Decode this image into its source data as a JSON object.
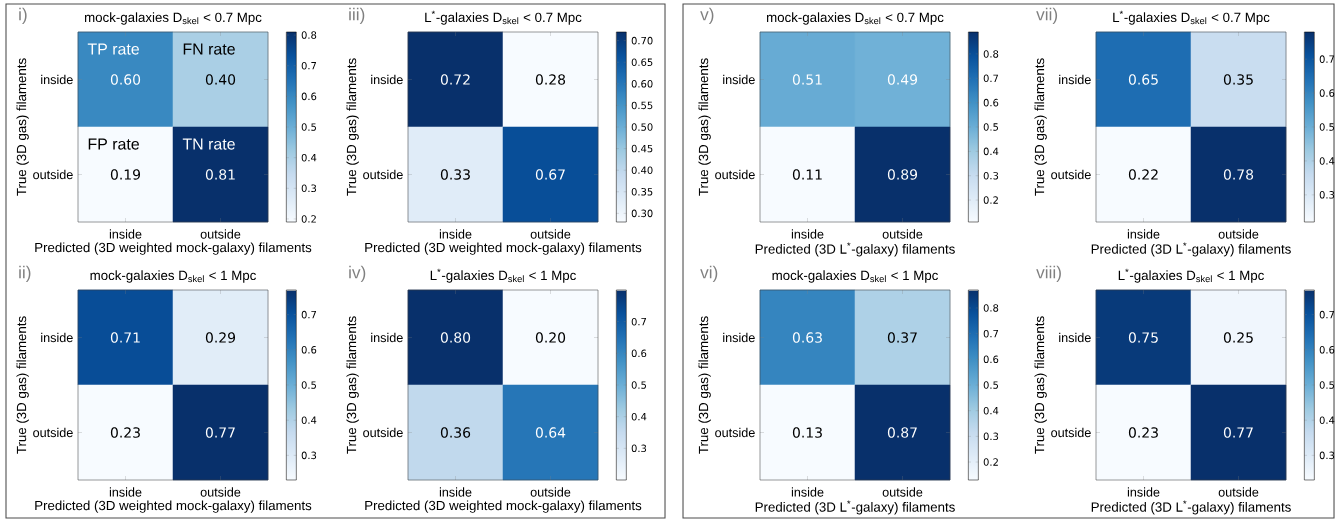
{
  "chart_data": [
    {
      "type": "heatmap",
      "title": "mock-galaxies D$_{skel}$ < 0.7 Mpc",
      "xlabel": "Predicted (3D weighted mock-galaxy) filaments",
      "ylabel": "True (3D gas) filaments",
      "categories": [
        "inside",
        "outside"
      ],
      "y_categories": [
        "inside",
        "outside"
      ],
      "cells": [
        [
          0.6,
          0.4
        ],
        [
          0.19,
          0.81
        ]
      ],
      "cell_labels": [
        [
          "0.60",
          "0.40"
        ],
        [
          "0.19",
          "0.81"
        ]
      ],
      "data_labels": true,
      "clim": [
        0.19,
        0.81
      ],
      "cticks": [
        0.2,
        0.3,
        0.4,
        0.5,
        0.6,
        0.7,
        0.8
      ],
      "annotations": [
        "i)",
        "TP rate",
        "FN rate",
        "FP rate",
        "TN rate"
      ]
    },
    {
      "type": "heatmap",
      "title": "L$^{*}$-galaxies D$_{skel}$ < 0.7 Mpc",
      "xlabel": "Predicted (3D weighted mock-galaxy) filaments",
      "ylabel": "True (3D gas) filaments",
      "categories": [
        "inside",
        "outside"
      ],
      "y_categories": [
        "inside",
        "outside"
      ],
      "cells": [
        [
          0.72,
          0.28
        ],
        [
          0.33,
          0.67
        ]
      ],
      "data_labels": true,
      "clim": [
        0.28,
        0.72
      ],
      "cticks": [
        {
          "value": 0.3,
          "label": "0.30"
        },
        0.35,
        {
          "value": 0.4,
          "label": "0.40"
        },
        0.45,
        {
          "value": 0.5,
          "label": "0.50"
        },
        0.55,
        {
          "value": 0.6,
          "label": "0.60"
        },
        0.65,
        {
          "value": 0.7,
          "label": "0.70"
        }
      ],
      "annotations": [
        "iii)"
      ]
    },
    {
      "type": "heatmap",
      "title": "mock-galaxies D$_{skel}$ < 0.7 Mpc",
      "xlabel": "Predicted (3D L$^{*}$-galaxy) filaments",
      "ylabel": "True (3D gas) filaments",
      "categories": [
        "inside",
        "outside"
      ],
      "y_categories": [
        "inside",
        "outside"
      ],
      "cells": [
        [
          0.51,
          0.49
        ],
        [
          0.11,
          0.89
        ]
      ],
      "data_labels": true,
      "clim": [
        0.11,
        0.89
      ],
      "cticks": [
        0.2,
        0.3,
        0.4,
        0.5,
        0.6,
        0.7,
        0.8
      ],
      "annotations": [
        "v)"
      ]
    },
    {
      "type": "heatmap",
      "title": "L$^{*}$-galaxies D$_{skel}$ < 0.7 Mpc",
      "xlabel": "Predicted (3D L$^{*}$-galaxy) filaments",
      "ylabel": "True (3D gas) filaments",
      "categories": [
        "inside",
        "outside"
      ],
      "y_categories": [
        "inside",
        "outside"
      ],
      "cells": [
        [
          0.65,
          0.35
        ],
        [
          0.22,
          0.78
        ]
      ],
      "data_labels": true,
      "clim": [
        0.22,
        0.78
      ],
      "cticks": [
        0.3,
        0.4,
        0.5,
        0.6,
        0.7
      ],
      "annotations": [
        "vii)"
      ]
    },
    {
      "type": "heatmap",
      "title": "mock-galaxies D$_{skel}$ < 1 Mpc",
      "xlabel": "Predicted (3D weighted mock-galaxy) filaments",
      "ylabel": "True (3D gas) filaments",
      "categories": [
        "inside",
        "outside"
      ],
      "y_categories": [
        "inside",
        "outside"
      ],
      "cells": [
        [
          0.71,
          0.29
        ],
        [
          0.23,
          0.77
        ]
      ],
      "data_labels": true,
      "clim": [
        0.23,
        0.77
      ],
      "cticks": [
        0.3,
        0.4,
        0.5,
        0.6,
        0.7
      ],
      "annotations": [
        "ii)"
      ]
    },
    {
      "type": "heatmap",
      "title": "L$^{*}$-galaxies D$_{skel}$ < 1 Mpc",
      "xlabel": "Predicted (3D weighted mock-galaxy) filaments",
      "ylabel": "True (3D gas) filaments",
      "categories": [
        "inside",
        "outside"
      ],
      "y_categories": [
        "inside",
        "outside"
      ],
      "cells": [
        [
          0.8,
          0.2
        ],
        [
          0.36,
          0.64
        ]
      ],
      "cell_labels": [
        [
          "0.80",
          "0.20"
        ],
        [
          "0.36",
          "0.64"
        ]
      ],
      "data_labels": true,
      "clim": [
        0.2,
        0.8
      ],
      "cticks": [
        0.3,
        0.4,
        0.5,
        0.6,
        0.7
      ],
      "annotations": [
        "iv)"
      ]
    },
    {
      "type": "heatmap",
      "title": "mock-galaxies D$_{skel}$ < 1 Mpc",
      "xlabel": "Predicted (3D L$^{*}$-galaxy) filaments",
      "ylabel": "True (3D gas) filaments",
      "categories": [
        "inside",
        "outside"
      ],
      "y_categories": [
        "inside",
        "outside"
      ],
      "cells": [
        [
          0.63,
          0.37
        ],
        [
          0.13,
          0.87
        ]
      ],
      "data_labels": true,
      "clim": [
        0.13,
        0.87
      ],
      "cticks": [
        0.2,
        0.3,
        0.4,
        0.5,
        0.6,
        0.7,
        0.8
      ],
      "annotations": [
        "vi)"
      ]
    },
    {
      "type": "heatmap",
      "title": "L$^{*}$-galaxies D$_{skel}$ < 1 Mpc",
      "xlabel": "Predicted (3D L$^{*}$-galaxy) filaments",
      "ylabel": "True (3D gas) filaments",
      "categories": [
        "inside",
        "outside"
      ],
      "y_categories": [
        "inside",
        "outside"
      ],
      "cells": [
        [
          0.75,
          0.25
        ],
        [
          0.23,
          0.77
        ]
      ],
      "data_labels": true,
      "clim": [
        0.23,
        0.77
      ],
      "cticks": [
        0.3,
        0.4,
        0.5,
        0.6,
        0.7
      ],
      "annotations": [
        "viii)"
      ]
    }
  ]
}
